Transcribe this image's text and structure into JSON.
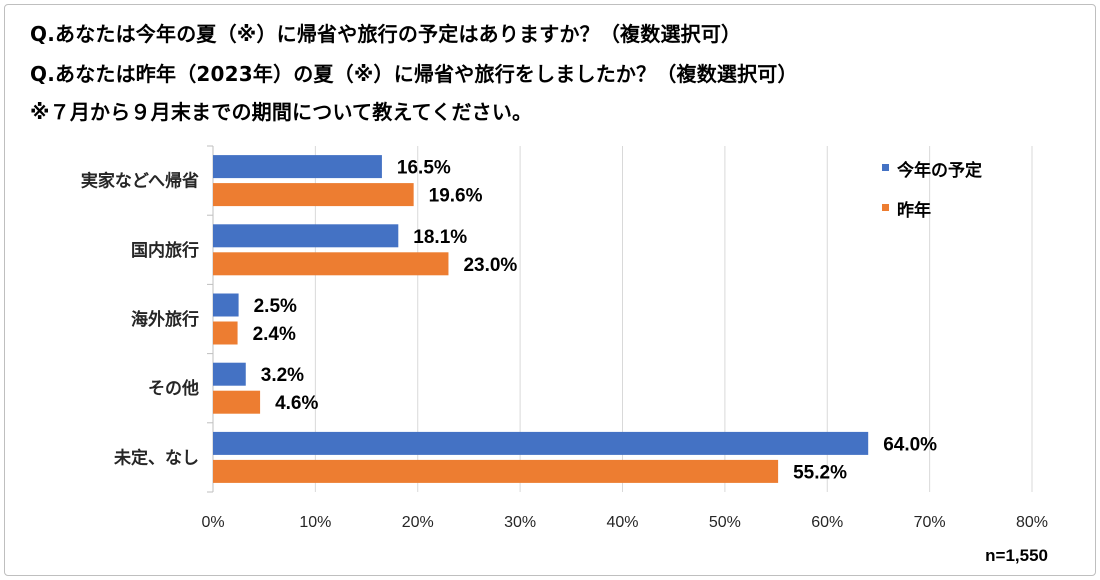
{
  "question_lines": [
    "Q.あなたは今年の夏（※）に帰省や旅行の予定はありますか？（複数選択可）",
    "Q.あなたは昨年（2023年）の夏（※）に帰省や旅行をしましたか？（複数選択可）",
    "※７月から９月末までの期間について教えてください。"
  ],
  "note": "n=1,550",
  "chart_data": {
    "type": "bar",
    "orientation": "horizontal",
    "categories": [
      "実家などへ帰省",
      "国内旅行",
      "海外旅行",
      "その他",
      "未定、なし"
    ],
    "series": [
      {
        "name": "今年の予定",
        "color": "#4472c4",
        "values": [
          16.5,
          18.1,
          2.5,
          3.2,
          64.0
        ],
        "labels": [
          "16.5%",
          "18.1%",
          "2.5%",
          "3.2%",
          "64.0%"
        ]
      },
      {
        "name": "昨年",
        "color": "#ed7d31",
        "values": [
          19.6,
          23.0,
          2.4,
          4.6,
          55.2
        ],
        "labels": [
          "19.6%",
          "23.0%",
          "2.4%",
          "4.6%",
          "55.2%"
        ]
      }
    ],
    "xlim": [
      0,
      80
    ],
    "xticks": [
      "0%",
      "10%",
      "20%",
      "30%",
      "40%",
      "50%",
      "60%",
      "70%",
      "80%"
    ],
    "grid": true,
    "legend_position": "top-right"
  }
}
